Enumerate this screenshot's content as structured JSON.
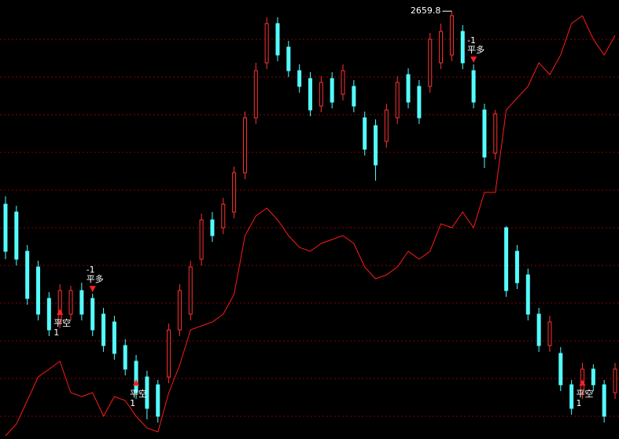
{
  "chart_data": {
    "type": "candlestick",
    "ylim": [
      2115,
      2674
    ],
    "grid": true,
    "up_color": "#ff3030",
    "down_color": "#54fcfc",
    "open": [
      2414,
      2404,
      2354,
      2334,
      2294,
      2264,
      2274,
      2304,
      2294,
      2274,
      2264,
      2234,
      2214,
      2194,
      2184,
      2194,
      2254,
      2274,
      2344,
      2394,
      2384,
      2404,
      2454,
      2524,
      2594,
      2644,
      2614,
      2584,
      2574,
      2539,
      2574,
      2554,
      2564,
      2524,
      2514,
      2494,
      2524,
      2579,
      2564,
      2564,
      2594,
      2604,
      2634,
      2584,
      2534,
      2479,
      2384,
      2354,
      2324,
      2274,
      2234,
      2224,
      2184,
      2174,
      2204,
      2184,
      2174
    ],
    "high": [
      2424,
      2412,
      2362,
      2342,
      2302,
      2312,
      2310,
      2314,
      2300,
      2282,
      2272,
      2242,
      2222,
      2202,
      2190,
      2262,
      2312,
      2342,
      2402,
      2404,
      2422,
      2462,
      2532,
      2594,
      2652,
      2652,
      2622,
      2592,
      2582,
      2577,
      2582,
      2592,
      2572,
      2532,
      2522,
      2542,
      2577,
      2587,
      2572,
      2632,
      2644,
      2659.8,
      2642,
      2592,
      2542,
      2534,
      2386,
      2362,
      2332,
      2282,
      2272,
      2232,
      2190,
      2212,
      2210,
      2190,
      2212
    ],
    "low": [
      2344,
      2336,
      2286,
      2266,
      2246,
      2256,
      2266,
      2266,
      2246,
      2226,
      2216,
      2196,
      2166,
      2140,
      2136,
      2186,
      2246,
      2266,
      2336,
      2366,
      2376,
      2396,
      2446,
      2516,
      2586,
      2596,
      2576,
      2556,
      2526,
      2531,
      2536,
      2546,
      2531,
      2476,
      2444,
      2486,
      2516,
      2536,
      2516,
      2556,
      2586,
      2596,
      2586,
      2536,
      2460,
      2471,
      2296,
      2306,
      2266,
      2226,
      2226,
      2176,
      2146,
      2166,
      2176,
      2136,
      2166
    ],
    "close": [
      2354,
      2344,
      2294,
      2274,
      2254,
      2304,
      2304,
      2274,
      2254,
      2234,
      2224,
      2204,
      2174,
      2154,
      2144,
      2254,
      2304,
      2334,
      2394,
      2374,
      2414,
      2454,
      2524,
      2584,
      2644,
      2604,
      2584,
      2564,
      2534,
      2569,
      2544,
      2584,
      2539,
      2484,
      2464,
      2534,
      2569,
      2544,
      2524,
      2624,
      2634,
      2654,
      2594,
      2544,
      2474,
      2529,
      2304,
      2314,
      2274,
      2234,
      2264,
      2184,
      2154,
      2204,
      2184,
      2144,
      2204
    ],
    "line": {
      "color": "#ff1a1a",
      "values": [
        2119,
        2134,
        2164,
        2194,
        2204,
        2214,
        2174,
        2169,
        2174,
        2144,
        2169,
        2164,
        2144,
        2129,
        2124,
        2174,
        2209,
        2254,
        2259,
        2264,
        2274,
        2299,
        2374,
        2399,
        2409,
        2394,
        2374,
        2359,
        2354,
        2364,
        2369,
        2374,
        2364,
        2334,
        2319,
        2324,
        2334,
        2354,
        2344,
        2354,
        2389,
        2384,
        2404,
        2384,
        2429,
        2429,
        2534,
        2549,
        2564,
        2594,
        2579,
        2604,
        2644,
        2654,
        2624,
        2604,
        2629
      ]
    },
    "signals": [
      {
        "candle": 5,
        "kind": "up",
        "lines": [
          "平空",
          "1"
        ]
      },
      {
        "candle": 8,
        "kind": "down",
        "lines": [
          "-1",
          "平多"
        ]
      },
      {
        "candle": 12,
        "kind": "up",
        "lines": [
          "平空",
          "1"
        ]
      },
      {
        "candle": 43,
        "kind": "down",
        "lines": [
          "-1",
          "平多"
        ]
      },
      {
        "candle": 53,
        "kind": "up",
        "lines": [
          "平空",
          "1"
        ]
      }
    ]
  }
}
